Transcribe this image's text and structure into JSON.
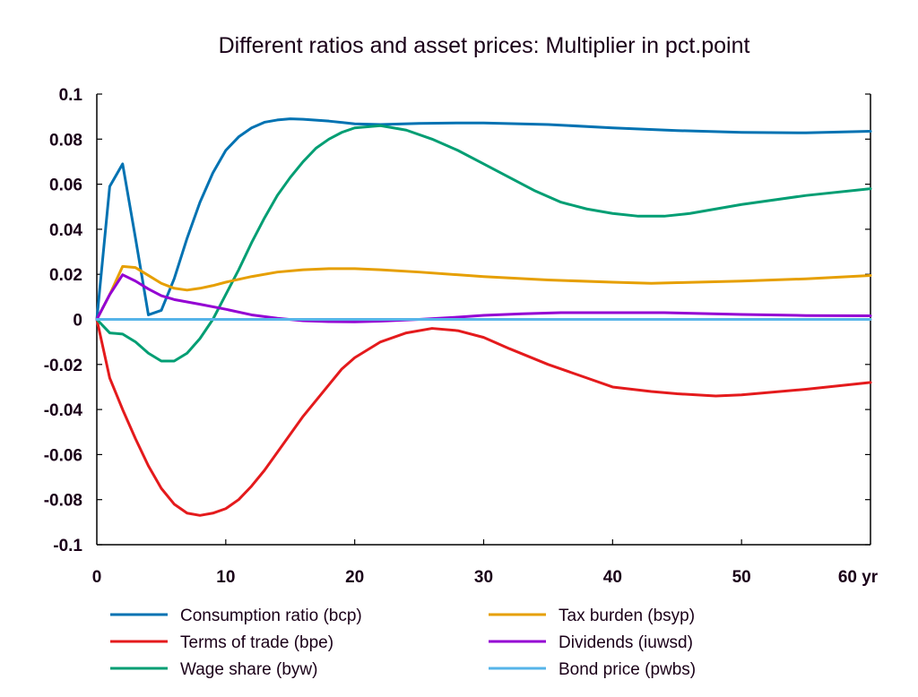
{
  "chart_data": {
    "type": "line",
    "title": "Different ratios and asset prices: Multiplier in pct.point",
    "xlabel": "",
    "ylabel": "",
    "x_unit_suffix": "yr",
    "xlim": [
      0,
      60
    ],
    "ylim": [
      -0.1,
      0.1
    ],
    "x_ticks": [
      0,
      10,
      20,
      30,
      40,
      50,
      60
    ],
    "x_tick_labels": [
      "0",
      "10",
      "20",
      "30",
      "40",
      "50",
      "60 yr"
    ],
    "y_ticks": [
      0.1,
      0.08,
      0.06,
      0.04,
      0.02,
      0,
      -0.02,
      -0.04,
      -0.06,
      -0.08,
      -0.1
    ],
    "y_tick_labels": [
      "0.1",
      "0.08",
      "0.06",
      "0.04",
      "0.02",
      "0",
      "-0.02",
      "-0.04",
      "-0.06",
      "-0.08",
      "-0.1"
    ],
    "grid": false,
    "legend_position": "bottom",
    "zero_line": true,
    "series": [
      {
        "name": "Consumption ratio (bcp)",
        "color": "#0072b2",
        "x": [
          0,
          1,
          2,
          3,
          4,
          5,
          6,
          7,
          8,
          9,
          10,
          11,
          12,
          13,
          14,
          15,
          16,
          18,
          20,
          22,
          25,
          28,
          30,
          35,
          40,
          45,
          50,
          55,
          60
        ],
        "values": [
          0,
          0.059,
          0.069,
          0.036,
          0.002,
          0.004,
          0.018,
          0.036,
          0.052,
          0.065,
          0.075,
          0.081,
          0.085,
          0.0875,
          0.0885,
          0.089,
          0.0888,
          0.088,
          0.0868,
          0.0865,
          0.087,
          0.0872,
          0.0872,
          0.0865,
          0.085,
          0.0838,
          0.083,
          0.0828,
          0.0835
        ]
      },
      {
        "name": "Terms of trade (bpe)",
        "color": "#e41a1c",
        "x": [
          0,
          1,
          2,
          3,
          4,
          5,
          6,
          7,
          8,
          9,
          10,
          11,
          12,
          13,
          14,
          15,
          16,
          17,
          18,
          19,
          20,
          22,
          24,
          26,
          28,
          30,
          32,
          35,
          38,
          40,
          43,
          45,
          48,
          50,
          55,
          60
        ],
        "values": [
          0,
          -0.026,
          -0.04,
          -0.053,
          -0.065,
          -0.075,
          -0.082,
          -0.086,
          -0.087,
          -0.086,
          -0.084,
          -0.08,
          -0.074,
          -0.067,
          -0.059,
          -0.051,
          -0.043,
          -0.036,
          -0.029,
          -0.022,
          -0.017,
          -0.01,
          -0.006,
          -0.004,
          -0.005,
          -0.008,
          -0.013,
          -0.02,
          -0.026,
          -0.03,
          -0.032,
          -0.033,
          -0.034,
          -0.0335,
          -0.031,
          -0.028
        ]
      },
      {
        "name": "Wage share (byw)",
        "color": "#009e73",
        "x": [
          0,
          1,
          2,
          3,
          4,
          5,
          6,
          7,
          8,
          9,
          10,
          11,
          12,
          13,
          14,
          15,
          16,
          17,
          18,
          19,
          20,
          22,
          24,
          26,
          28,
          30,
          32,
          34,
          36,
          38,
          40,
          42,
          44,
          46,
          48,
          50,
          55,
          60
        ],
        "values": [
          0,
          -0.006,
          -0.0065,
          -0.01,
          -0.015,
          -0.0185,
          -0.0185,
          -0.015,
          -0.0085,
          0,
          0.011,
          0.022,
          0.034,
          0.045,
          0.055,
          0.063,
          0.07,
          0.076,
          0.08,
          0.083,
          0.085,
          0.086,
          0.084,
          0.08,
          0.075,
          0.069,
          0.063,
          0.057,
          0.052,
          0.049,
          0.047,
          0.0458,
          0.0458,
          0.047,
          0.049,
          0.051,
          0.055,
          0.058
        ]
      },
      {
        "name": "Tax burden (bsyp)",
        "color": "#e69f00",
        "x": [
          0,
          1,
          2,
          3,
          4,
          5,
          6,
          7,
          8,
          9,
          10,
          12,
          14,
          16,
          18,
          20,
          22,
          25,
          30,
          35,
          40,
          43,
          45,
          50,
          55,
          60
        ],
        "values": [
          0,
          0.011,
          0.0235,
          0.023,
          0.0195,
          0.016,
          0.0138,
          0.013,
          0.0138,
          0.015,
          0.0165,
          0.019,
          0.021,
          0.022,
          0.0225,
          0.0225,
          0.022,
          0.021,
          0.019,
          0.0175,
          0.0165,
          0.016,
          0.0163,
          0.017,
          0.018,
          0.0195
        ]
      },
      {
        "name": "Dividends (iuwsd)",
        "color": "#9400d3",
        "x": [
          0,
          1,
          2,
          3,
          4,
          5,
          6,
          8,
          10,
          12,
          14,
          16,
          18,
          20,
          22,
          25,
          28,
          30,
          33,
          36,
          40,
          44,
          47,
          50,
          55,
          60
        ],
        "values": [
          0,
          0.011,
          0.0198,
          0.017,
          0.0135,
          0.0105,
          0.0088,
          0.0067,
          0.0045,
          0.002,
          0.0005,
          -0.0006,
          -0.001,
          -0.0011,
          -0.0008,
          0,
          0.001,
          0.0018,
          0.0025,
          0.003,
          0.003,
          0.003,
          0.0026,
          0.0022,
          0.0017,
          0.0016
        ]
      },
      {
        "name": "Bond price (pwbs)",
        "color": "#56b4e9",
        "x": [
          0,
          60
        ],
        "values": [
          0,
          0
        ]
      }
    ]
  }
}
